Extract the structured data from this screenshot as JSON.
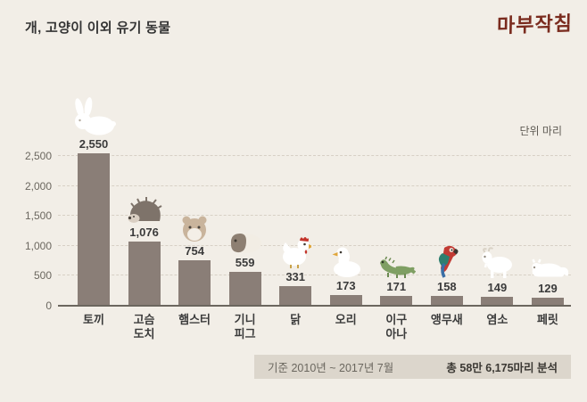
{
  "header": {
    "title": "개, 고양이 이외 유기 동물",
    "logo": "마부작침"
  },
  "chart": {
    "unit_label": "단위 마리"
  },
  "chart_data": {
    "type": "bar",
    "title": "개, 고양이 이외 유기 동물",
    "unit": "마리",
    "categories": [
      "토끼",
      "고슴도치",
      "햄스터",
      "기니피그",
      "닭",
      "오리",
      "이구아나",
      "앵무새",
      "염소",
      "페릿"
    ],
    "category_display": [
      "토끼",
      "고슴\n도치",
      "햄스터",
      "기니\n피그",
      "닭",
      "오리",
      "이구\n아나",
      "앵무새",
      "염소",
      "페릿"
    ],
    "values": [
      2550,
      1076,
      754,
      559,
      331,
      173,
      171,
      158,
      149,
      129
    ],
    "value_labels": [
      "2,550",
      "1,076",
      "754",
      "559",
      "331",
      "173",
      "171",
      "158",
      "149",
      "129"
    ],
    "icons": [
      "rabbit-icon",
      "hedgehog-icon",
      "hamster-icon",
      "guinea-pig-icon",
      "chicken-icon",
      "duck-icon",
      "iguana-icon",
      "parrot-icon",
      "goat-icon",
      "ferret-icon"
    ],
    "y_ticks": [
      "0",
      "500",
      "1,000",
      "1,500",
      "2,000",
      "2,500"
    ],
    "y_tick_values": [
      0,
      500,
      1000,
      1500,
      2000,
      2500
    ],
    "ylim": [
      0,
      2550
    ],
    "grid": "dashed horizontal",
    "legend": "none",
    "bar_color": "#8a7e77",
    "background_color": "#f2eee7",
    "logo_color": "#7a2b1e"
  },
  "footer": {
    "period": "기준 2010년 ~ 2017년 7월",
    "total": "총 58만 6,175마리 분석"
  }
}
